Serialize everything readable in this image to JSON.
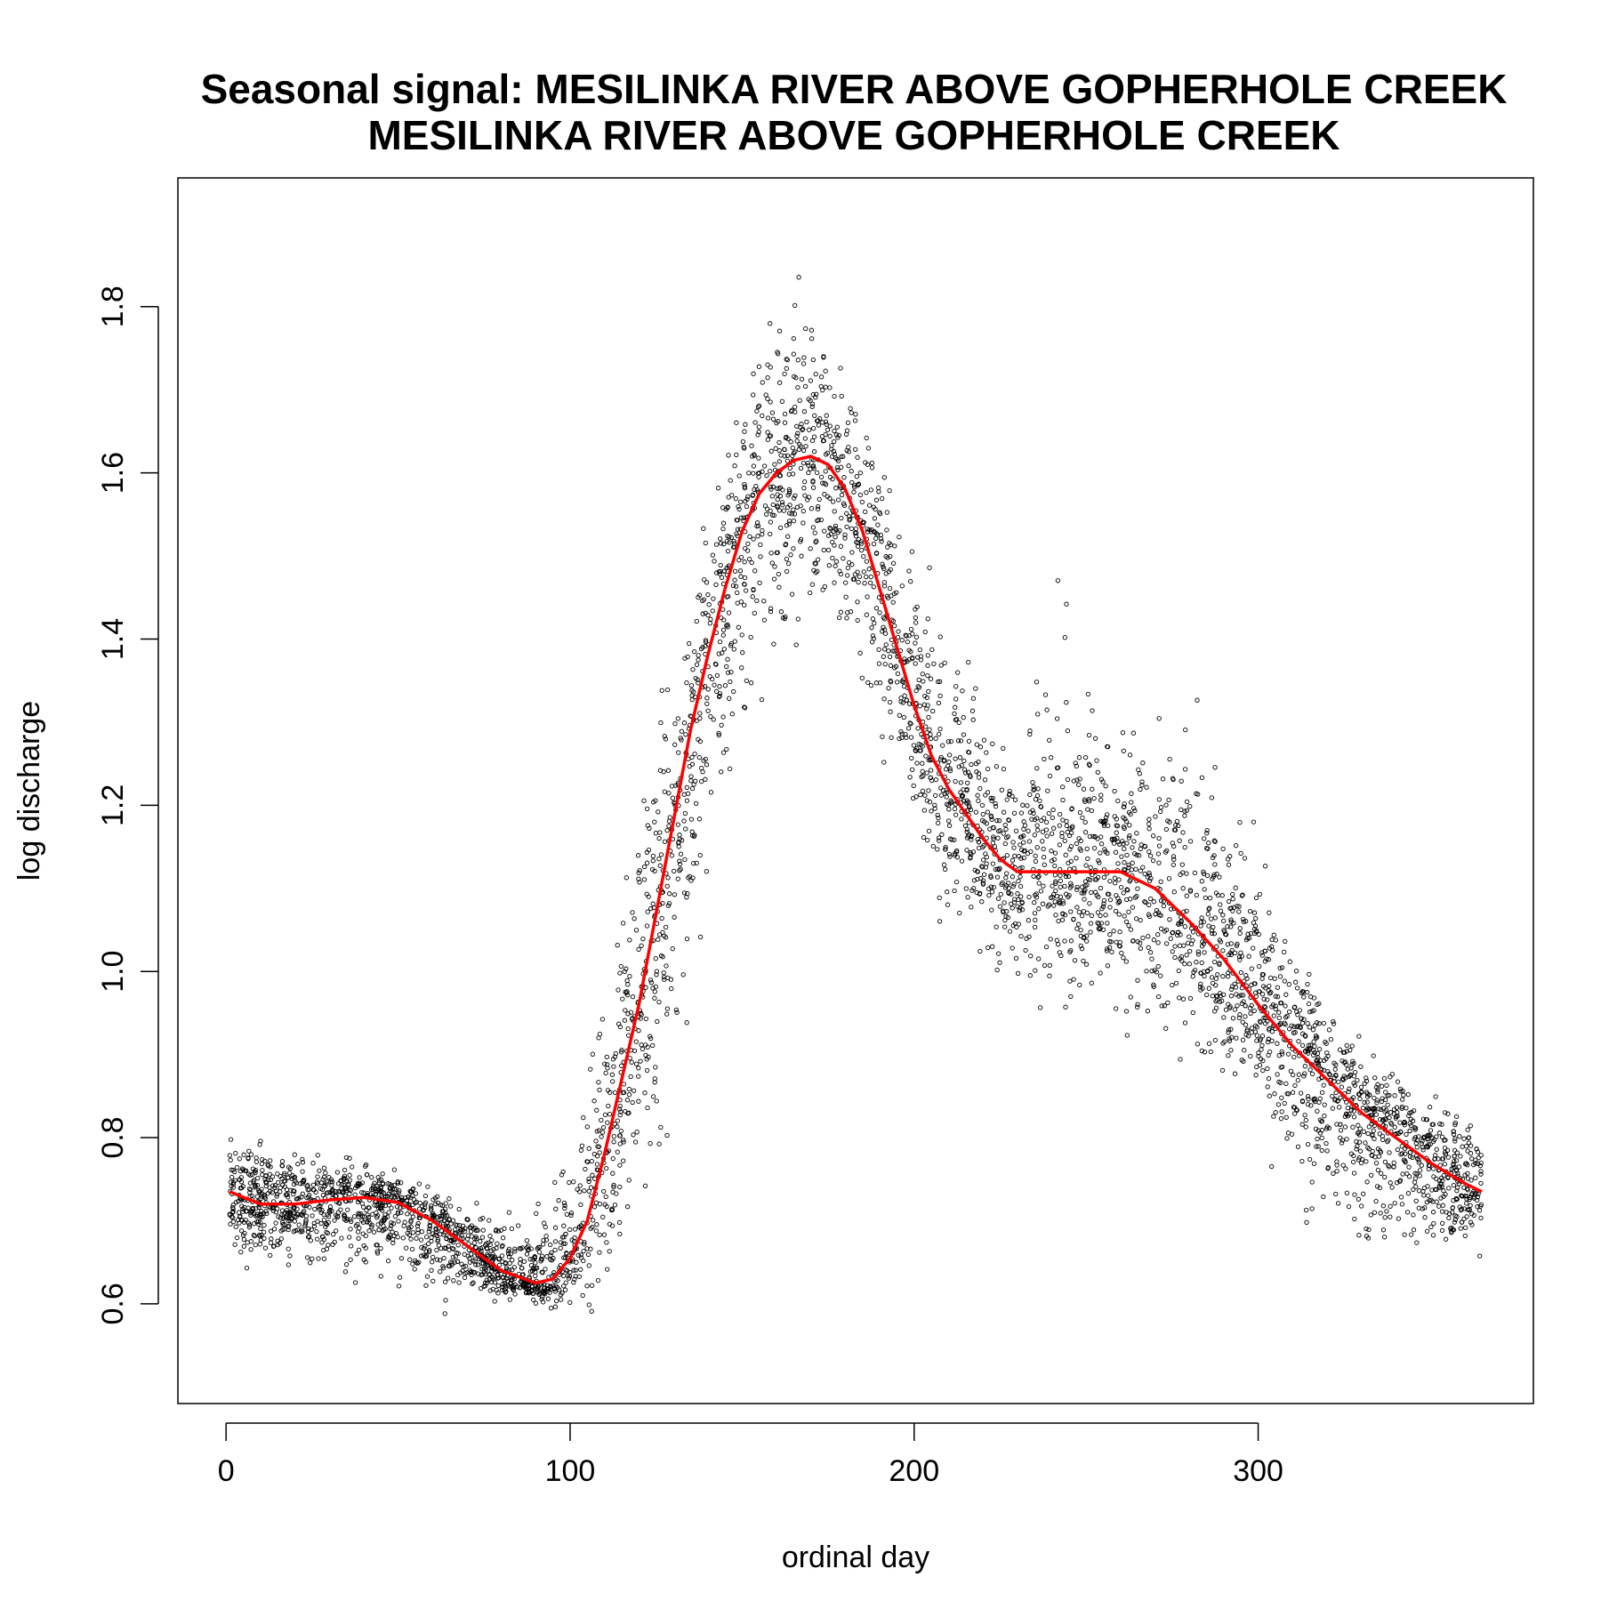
{
  "chart_data": {
    "type": "scatter",
    "title_lines": [
      "Seasonal signal: MESILINKA RIVER ABOVE GOPHERHOLE CREEK",
      "MESILINKA RIVER ABOVE GOPHERHOLE CREEK"
    ],
    "xlabel": "ordinal day",
    "ylabel": "log discharge",
    "xlim": [
      -14,
      380
    ],
    "ylim": [
      0.48,
      1.955
    ],
    "x_ticks": [
      0,
      100,
      200,
      300
    ],
    "y_ticks": [
      0.6,
      0.8,
      1.0,
      1.2,
      1.4,
      1.6,
      1.8
    ],
    "x_tick_labels": [
      "0",
      "100",
      "200",
      "300"
    ],
    "y_tick_labels": [
      "0.6",
      "0.8",
      "1.0",
      "1.2",
      "1.4",
      "1.6",
      "1.8"
    ],
    "grid": false,
    "scatter_color": "#000000",
    "smooth_color": "#ff0000",
    "scatter_point_count_approx": 5000,
    "scatter_envelope": {
      "x": [
        1,
        30,
        60,
        90,
        100,
        110,
        120,
        130,
        140,
        150,
        160,
        170,
        180,
        190,
        200,
        210,
        220,
        230,
        240,
        250,
        260,
        270,
        280,
        290,
        300,
        310,
        320,
        330,
        340,
        350,
        365
      ],
      "y_min": [
        0.64,
        0.6,
        0.58,
        0.59,
        0.56,
        0.52,
        0.6,
        0.78,
        0.98,
        1.2,
        1.34,
        1.32,
        1.3,
        1.2,
        1.12,
        1.0,
        0.96,
        0.92,
        0.9,
        0.88,
        0.86,
        0.84,
        0.82,
        0.8,
        0.78,
        0.68,
        0.62,
        0.6,
        0.6,
        0.6,
        0.62
      ],
      "y_max": [
        0.85,
        0.8,
        0.76,
        0.74,
        0.82,
        1.05,
        1.3,
        1.45,
        1.6,
        1.75,
        1.9,
        1.88,
        1.8,
        1.72,
        1.6,
        1.5,
        1.4,
        1.3,
        1.56,
        1.42,
        1.35,
        1.36,
        1.44,
        1.3,
        1.2,
        1.1,
        1.0,
        0.95,
        0.92,
        0.88,
        0.85
      ]
    },
    "smooth_curve": {
      "name": "",
      "x": [
        1,
        10,
        20,
        30,
        40,
        50,
        60,
        70,
        80,
        90,
        95,
        100,
        105,
        110,
        115,
        120,
        125,
        130,
        135,
        140,
        145,
        150,
        155,
        160,
        165,
        170,
        175,
        180,
        185,
        190,
        195,
        200,
        205,
        210,
        215,
        220,
        225,
        230,
        235,
        240,
        250,
        260,
        270,
        280,
        290,
        300,
        310,
        320,
        330,
        340,
        350,
        360,
        365
      ],
      "y": [
        0.735,
        0.72,
        0.72,
        0.725,
        0.728,
        0.722,
        0.7,
        0.67,
        0.64,
        0.625,
        0.63,
        0.655,
        0.7,
        0.78,
        0.87,
        0.96,
        1.07,
        1.18,
        1.29,
        1.38,
        1.46,
        1.53,
        1.575,
        1.6,
        1.615,
        1.62,
        1.61,
        1.58,
        1.53,
        1.46,
        1.39,
        1.32,
        1.26,
        1.22,
        1.19,
        1.16,
        1.135,
        1.12,
        1.12,
        1.12,
        1.12,
        1.12,
        1.1,
        1.06,
        1.015,
        0.96,
        0.91,
        0.87,
        0.83,
        0.8,
        0.77,
        0.745,
        0.735
      ]
    }
  }
}
